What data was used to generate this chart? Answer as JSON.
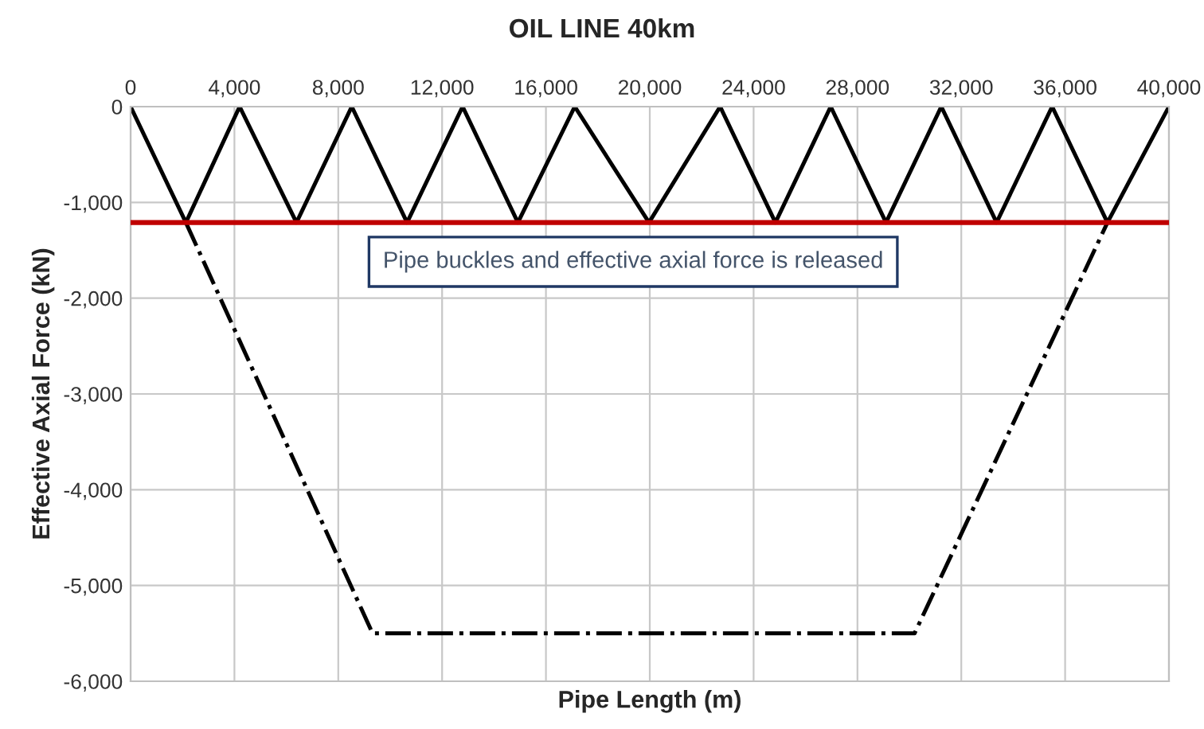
{
  "chart_data": {
    "type": "line",
    "title": "OIL LINE 40km",
    "xlabel": "Pipe Length (m)",
    "ylabel": "Effective Axial Force (kN)",
    "xlim": [
      0,
      40000
    ],
    "xticks": [
      {
        "value": 0,
        "label": "0"
      },
      {
        "value": 4000,
        "label": "4,000"
      },
      {
        "value": 8000,
        "label": "8,000"
      },
      {
        "value": 12000,
        "label": "12,000"
      },
      {
        "value": 16000,
        "label": "16,000"
      },
      {
        "value": 20000,
        "label": "20,000"
      },
      {
        "value": 24000,
        "label": "24,000"
      },
      {
        "value": 28000,
        "label": "28,000"
      },
      {
        "value": 32000,
        "label": "32,000"
      },
      {
        "value": 36000,
        "label": "36,000"
      },
      {
        "value": 40000,
        "label": "40,000"
      }
    ],
    "ylim": [
      -6000,
      0
    ],
    "yticks": [
      {
        "value": -6000,
        "label": "-6,000"
      },
      {
        "value": -5000,
        "label": "-5,000"
      },
      {
        "value": -4000,
        "label": "-4,000"
      },
      {
        "value": -3000,
        "label": "-3,000"
      },
      {
        "value": -2000,
        "label": "-2,000"
      },
      {
        "value": -1000,
        "label": "-1,000"
      },
      {
        "value": 0,
        "label": "0"
      }
    ],
    "grid": true,
    "legend": false,
    "marker": "none",
    "series": [
      {
        "color": "#000000",
        "line_style": "solid",
        "x": [
          0,
          2130,
          4200,
          6390,
          8520,
          10650,
          12790,
          14920,
          17110,
          19970,
          22710,
          24840,
          26970,
          29100,
          31230,
          33360,
          35500,
          37630,
          40000
        ],
        "values": [
          0,
          -1210,
          0,
          -1210,
          0,
          -1210,
          0,
          -1210,
          0,
          -1210,
          0,
          -1210,
          0,
          -1210,
          0,
          -1210,
          0,
          -1210,
          0
        ]
      },
      {
        "color": "#000000",
        "line_style": "dashdot",
        "x": [
          2130,
          9320,
          30200,
          37630
        ],
        "values": [
          -1210,
          -5500,
          -5500,
          -1210
        ]
      }
    ],
    "ref_lines": [
      {
        "axis": "y",
        "value": -1210,
        "color": "#c00000"
      }
    ],
    "annotations": [
      "Pipe buckles and effective axial force is released"
    ]
  }
}
